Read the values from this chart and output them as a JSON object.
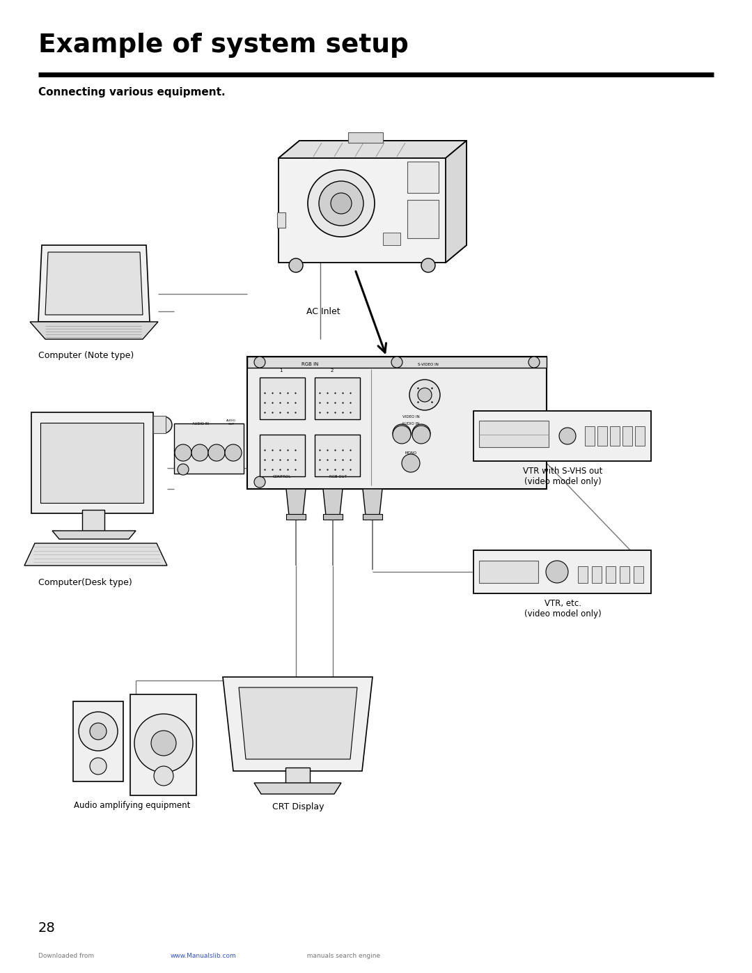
{
  "title": "Example of system setup",
  "subtitle": "Connecting various equipment.",
  "page_number": "28",
  "footer_prefix": "Downloaded from ",
  "footer_url": "www.Manualslib.com",
  "footer_suffix": "  manuals search engine",
  "background_color": "#ffffff",
  "text_color": "#000000",
  "labels": {
    "ac_inlet": "AC Inlet",
    "computer_note": "Computer (Note type)",
    "computer_desk": "Computer(Desk type)",
    "vtr_svhs": "VTR with S-VHS out\n(video model only)",
    "vtr_etc": "VTR, etc.\n(video model only)",
    "audio": "Audio amplifying equipment",
    "crt": "CRT Display"
  }
}
